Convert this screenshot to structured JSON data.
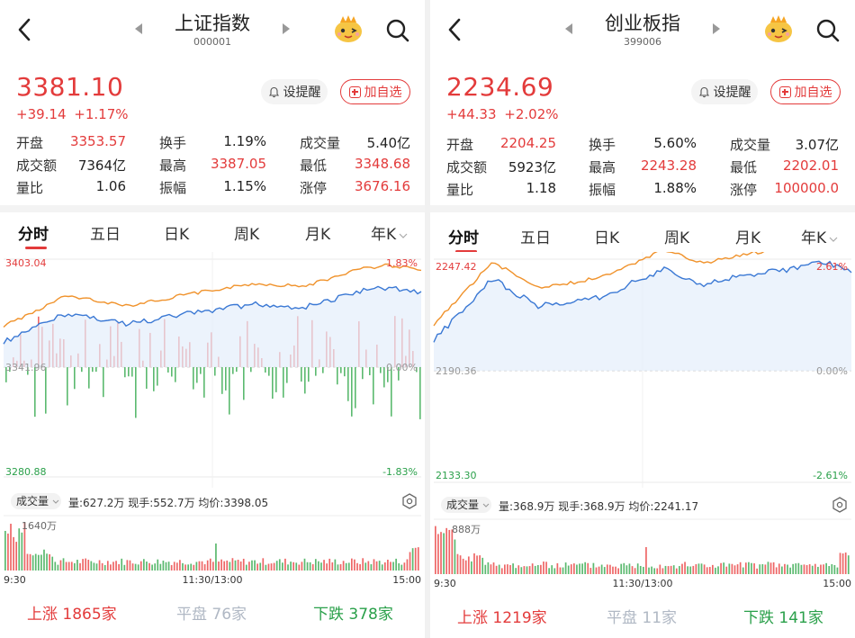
{
  "left": {
    "title": "上证指数",
    "code": "000001",
    "price": "3381.10",
    "change": "+39.14",
    "change_pct": "+1.17%",
    "buttons": {
      "remind": "设提醒",
      "add": "加自选"
    },
    "stats": [
      {
        "label": "开盘",
        "value": "3353.57",
        "color": "red"
      },
      {
        "label": "换手",
        "value": "1.19%",
        "color": "dark"
      },
      {
        "label": "成交量",
        "value": "5.40亿",
        "color": "dark"
      },
      {
        "label": "成交额",
        "value": "7364亿",
        "color": "dark"
      },
      {
        "label": "最高",
        "value": "3387.05",
        "color": "red"
      },
      {
        "label": "最低",
        "value": "3348.68",
        "color": "red"
      },
      {
        "label": "量比",
        "value": "1.06",
        "color": "dark"
      },
      {
        "label": "振幅",
        "value": "1.15%",
        "color": "dark"
      },
      {
        "label": "涨停",
        "value": "3676.16",
        "color": "red"
      }
    ],
    "tabs": [
      "分时",
      "五日",
      "日K",
      "周K",
      "月K",
      "年K"
    ],
    "chart": {
      "y_max": "3403.04",
      "y_mid": "3341.96",
      "y_min": "3280.88",
      "pct_max": "1.83%",
      "pct_mid": "0.00%",
      "pct_min": "-1.83%"
    },
    "vol_select": "成交量",
    "vol_info": "量:627.2万  现手:552.7万  均价:3398.05",
    "vol_max": "1640万",
    "time_labels": [
      "9:30",
      "11:30/13:00",
      "15:00"
    ],
    "breadth": {
      "up_label": "上涨",
      "up": "1865家",
      "flat_label": "平盘",
      "flat": "76家",
      "down_label": "下跌",
      "down": "378家"
    }
  },
  "right": {
    "title": "创业板指",
    "code": "399006",
    "price": "2234.69",
    "change": "+44.33",
    "change_pct": "+2.02%",
    "buttons": {
      "remind": "设提醒",
      "add": "加自选"
    },
    "stats": [
      {
        "label": "开盘",
        "value": "2204.25",
        "color": "red"
      },
      {
        "label": "换手",
        "value": "5.60%",
        "color": "dark"
      },
      {
        "label": "成交量",
        "value": "3.07亿",
        "color": "dark"
      },
      {
        "label": "成交额",
        "value": "5923亿",
        "color": "dark"
      },
      {
        "label": "最高",
        "value": "2243.28",
        "color": "red"
      },
      {
        "label": "最低",
        "value": "2202.01",
        "color": "red"
      },
      {
        "label": "量比",
        "value": "1.18",
        "color": "dark"
      },
      {
        "label": "振幅",
        "value": "1.88%",
        "color": "dark"
      },
      {
        "label": "涨停",
        "value": "100000.0",
        "color": "red"
      }
    ],
    "tabs": [
      "分时",
      "五日",
      "日K",
      "周K",
      "月K",
      "年K"
    ],
    "chart": {
      "y_max": "2247.42",
      "y_mid": "2190.36",
      "y_min": "2133.30",
      "pct_max": "2.61%",
      "pct_mid": "0.00%",
      "pct_min": "-2.61%"
    },
    "vol_select": "成交量",
    "vol_info": "量:368.9万  现手:368.9万  均价:2241.17",
    "vol_max": "888万",
    "time_labels": [
      "9:30",
      "11:30/13:00",
      "15:00"
    ],
    "breadth": {
      "up_label": "上涨",
      "up": "1219家",
      "flat_label": "平盘",
      "flat": "11家",
      "down_label": "下跌",
      "down": "141家"
    }
  },
  "colors": {
    "up": "#e33b3b",
    "down": "#2aa04a",
    "price_line": "#3a78d4",
    "avg_line": "#f0922b",
    "flat": "#b0b8c4"
  }
}
